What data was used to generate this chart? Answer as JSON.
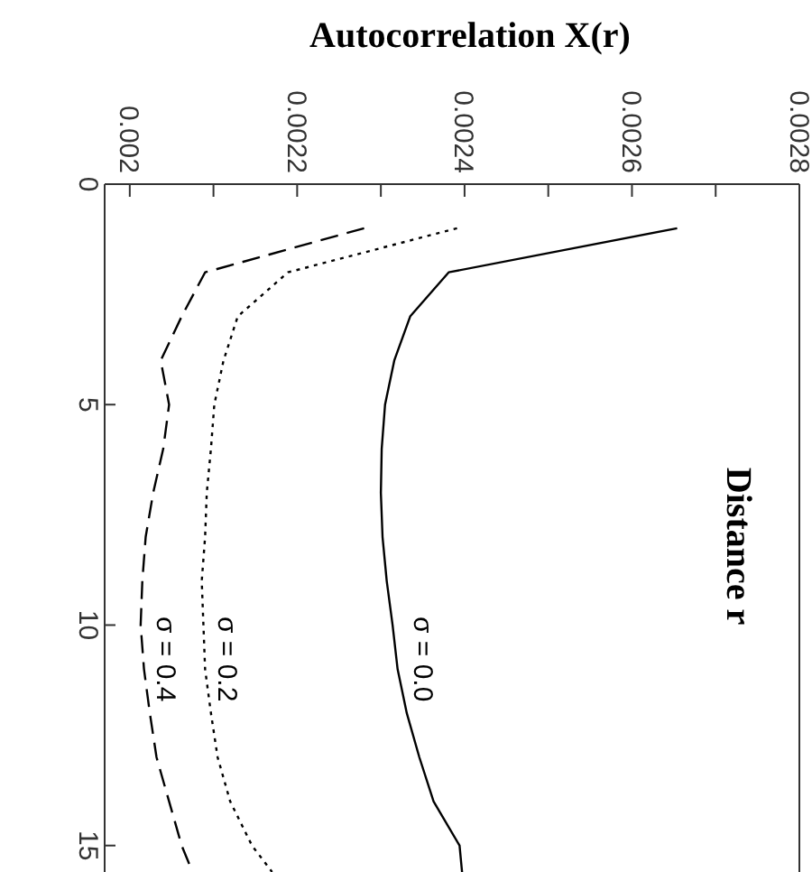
{
  "chart_data": {
    "type": "line",
    "xlabel": "Autocorrelation  X(r)",
    "ylabel": "Distance  r",
    "xlim": [
      0.00197,
      0.0028
    ],
    "xticks": [
      {
        "value": 0.002,
        "label": "0.002"
      },
      {
        "value": 0.0021,
        "label": null
      },
      {
        "value": 0.0022,
        "label": "0.0022"
      },
      {
        "value": 0.0023,
        "label": null
      },
      {
        "value": 0.0024,
        "label": "0.0024"
      },
      {
        "value": 0.0025,
        "label": null
      },
      {
        "value": 0.0026,
        "label": "0.0026"
      },
      {
        "value": 0.0027,
        "label": null
      },
      {
        "value": 0.0028,
        "label": "0.0028"
      }
    ],
    "ylim": [
      15.6,
      0
    ],
    "yticks": [
      0,
      5,
      10,
      15
    ],
    "marker": "none",
    "series": [
      {
        "name": "σ = 0.0",
        "color": "#000000",
        "line_style": "solid",
        "x": [
          0.002654,
          0.002381,
          0.002335,
          0.002316,
          0.002305,
          0.002301,
          0.0023,
          0.002302,
          0.002307,
          0.002314,
          0.00232,
          0.002331,
          0.002346,
          0.002363,
          0.002394,
          0.002397
        ],
        "values": [
          1,
          2,
          3,
          4,
          5,
          6,
          7,
          8,
          9,
          10,
          11,
          12,
          13,
          14,
          15,
          15.6
        ]
      },
      {
        "name": "σ = 0.2",
        "color": "#000000",
        "line_style": "dotted",
        "x": [
          0.002391,
          0.002189,
          0.002129,
          0.002112,
          0.002101,
          0.002097,
          0.002092,
          0.00209,
          0.002086,
          0.002088,
          0.00209,
          0.002097,
          0.002105,
          0.00212,
          0.002146,
          0.00217
        ],
        "values": [
          1,
          2,
          3,
          4,
          5,
          6,
          7,
          8,
          9,
          10,
          11,
          12,
          13,
          14,
          15,
          15.6
        ]
      },
      {
        "name": "σ = 0.4",
        "color": "#000000",
        "line_style": "dashed",
        "x": [
          0.00228,
          0.00209,
          0.002062,
          0.002037,
          0.002047,
          0.00204,
          0.002028,
          0.002019,
          0.002015,
          0.002013,
          0.002017,
          0.002024,
          0.002032,
          0.002047,
          0.002062,
          0.002075
        ],
        "values": [
          1,
          2,
          3,
          4,
          5,
          6,
          7,
          8,
          9,
          10,
          11,
          12,
          13,
          14,
          15,
          15.6
        ]
      }
    ]
  }
}
